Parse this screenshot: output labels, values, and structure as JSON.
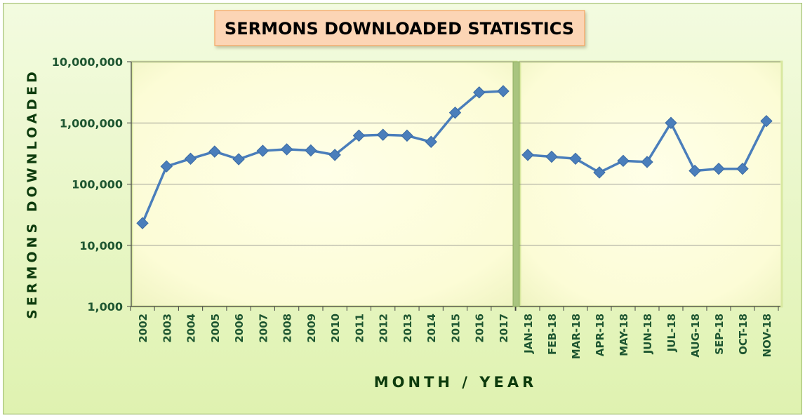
{
  "chart_data": {
    "type": "line",
    "title": "SERMONS DOWNLOADED STATISTICS",
    "xlabel": "MONTH / YEAR",
    "ylabel": "SERMONS DOWNLOADED",
    "y_scale": "log",
    "ylim": [
      1000,
      10000000
    ],
    "y_ticks": [
      1000,
      10000,
      100000,
      1000000,
      10000000
    ],
    "y_tick_labels": [
      "1,000",
      "10,000",
      "100,000",
      "1,000,000",
      "10,000,000"
    ],
    "grid": true,
    "legend": "none",
    "series_color": "#4a7ebb",
    "colors": {
      "title_box_fill": "#fcd5b5",
      "title_box_border": "#f4a460",
      "plot_fill": "#fefee0",
      "outer_fill": "#eaf6c8",
      "divider": "#a9c47f",
      "axis_text": "#1e5631",
      "axis_title": "#0d3b0d"
    },
    "panels": [
      {
        "categories": [
          "2002",
          "2003",
          "2004",
          "2005",
          "2006",
          "2007",
          "2008",
          "2009",
          "2010",
          "2011",
          "2012",
          "2013",
          "2014",
          "2015",
          "2016",
          "2017"
        ],
        "series": [
          {
            "values": [
              23000,
              195000,
              260000,
              340000,
              255000,
              350000,
              370000,
              355000,
              300000,
              620000,
              640000,
              620000,
              490000,
              1470000,
              3150000,
              3300000
            ]
          }
        ]
      },
      {
        "categories": [
          "JAN-18",
          "FEB-18",
          "MAR-18",
          "APR-18",
          "MAY-18",
          "JUN-18",
          "JUL-18",
          "AUG-18",
          "SEP-18",
          "OCT-18",
          "NOV-18"
        ],
        "series": [
          {
            "values": [
              300000,
              280000,
              260000,
              155000,
              240000,
              230000,
              1000000,
              165000,
              178000,
              178000,
              1070000
            ]
          }
        ]
      }
    ]
  }
}
